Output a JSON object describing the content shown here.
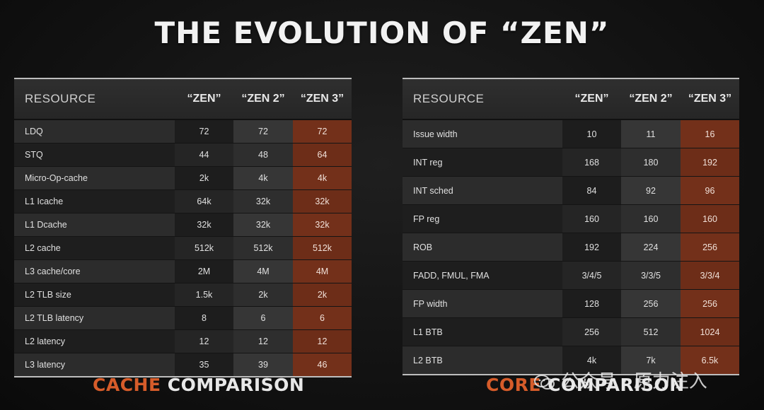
{
  "title": "THE EVOLUTION OF “ZEN”",
  "cache_table": {
    "headers": [
      "RESOURCE",
      "“ZEN”",
      "“ZEN 2”",
      "“ZEN 3”"
    ],
    "rows": [
      [
        "LDQ",
        "72",
        "72",
        "72"
      ],
      [
        "STQ",
        "44",
        "48",
        "64"
      ],
      [
        "Micro-Op-cache",
        "2k",
        "4k",
        "4k"
      ],
      [
        "L1 Icache",
        "64k",
        "32k",
        "32k"
      ],
      [
        "L1 Dcache",
        "32k",
        "32k",
        "32k"
      ],
      [
        "L2 cache",
        "512k",
        "512k",
        "512k"
      ],
      [
        "L3 cache/core",
        "2M",
        "4M",
        "4M"
      ],
      [
        "L2 TLB size",
        "1.5k",
        "2k",
        "2k"
      ],
      [
        "L2 TLB latency",
        "8",
        "6",
        "6"
      ],
      [
        "L2 latency",
        "12",
        "12",
        "12"
      ],
      [
        "L3 latency",
        "35",
        "39",
        "46"
      ]
    ]
  },
  "core_table": {
    "headers": [
      "RESOURCE",
      "“ZEN”",
      "“ZEN 2”",
      "“ZEN 3”"
    ],
    "rows": [
      [
        "Issue width",
        "10",
        "11",
        "16"
      ],
      [
        "INT reg",
        "168",
        "180",
        "192"
      ],
      [
        "INT sched",
        "84",
        "92",
        "96"
      ],
      [
        "FP reg",
        "160",
        "160",
        "160"
      ],
      [
        "ROB",
        "192",
        "224",
        "256"
      ],
      [
        "FADD, FMUL, FMA",
        "3/4/5",
        "3/3/5",
        "3/3/4"
      ],
      [
        "FP width",
        "128",
        "256",
        "256"
      ],
      [
        "L1 BTB",
        "256",
        "512",
        "1024"
      ],
      [
        "L2 BTB",
        "4k",
        "7k",
        "6.5k"
      ]
    ]
  },
  "labels": {
    "cache_accent": "CACHE",
    "cache_rest": " COMPARISON",
    "core_accent": "CORE",
    "core_rest": " COMPARISON"
  },
  "watermark": "公众号 · 原力注入",
  "colors": {
    "accent_orange": "#d65c2a",
    "zen3_column": "#73301a",
    "background": "#121212"
  }
}
